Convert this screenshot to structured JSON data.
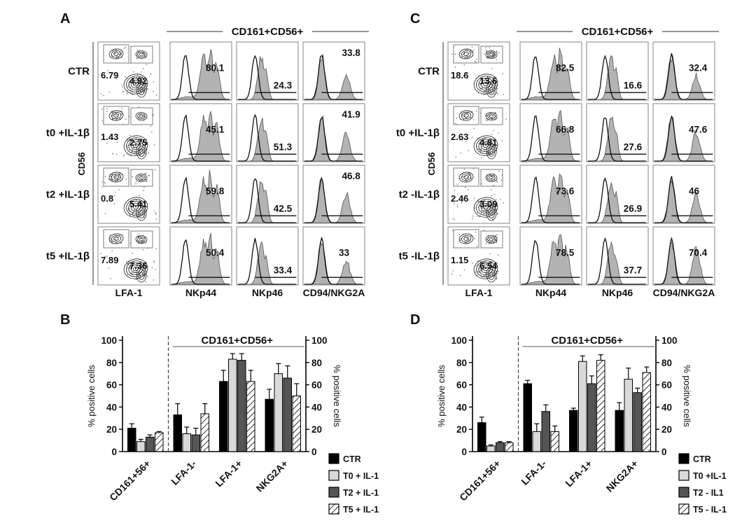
{
  "figure": {
    "background": "#ffffff"
  },
  "flow_panels": [
    {
      "panel_label": "A",
      "header": "CD161+CD56+",
      "y_axis_label": "CD56",
      "x_axis_labels": [
        "LFA-1",
        "NKp44",
        "NKp46",
        "CD94/NKG2A"
      ],
      "rows": [
        {
          "label": "CTR",
          "gates": [
            "6.79",
            "4.82"
          ],
          "hist": [
            {
              "value": "80.1",
              "pos": "mid"
            },
            {
              "value": "24.3",
              "pos": "low"
            },
            {
              "value": "33.8",
              "pos": "top"
            }
          ]
        },
        {
          "label": "t0 +IL-1β",
          "gates": [
            "1.43",
            "2.75"
          ],
          "hist": [
            {
              "value": "45.1",
              "pos": "mid"
            },
            {
              "value": "51.3",
              "pos": "low"
            },
            {
              "value": "41.9",
              "pos": "top"
            }
          ]
        },
        {
          "label": "t2 +IL-1β",
          "gates": [
            "0.8",
            "5.41"
          ],
          "hist": [
            {
              "value": "59.8",
              "pos": "mid"
            },
            {
              "value": "42.5",
              "pos": "low"
            },
            {
              "value": "46.8",
              "pos": "top"
            }
          ]
        },
        {
          "label": "t5 +IL-1β",
          "gates": [
            "7.89",
            "7.36"
          ],
          "hist": [
            {
              "value": "50.4",
              "pos": "mid"
            },
            {
              "value": "33.4",
              "pos": "low"
            },
            {
              "value": "33",
              "pos": "mid"
            }
          ]
        }
      ]
    },
    {
      "panel_label": "C",
      "header": "CD161+CD56+",
      "y_axis_label": "CD56",
      "x_axis_labels": [
        "LFA-1",
        "NKp44",
        "NKp46",
        "CD94/NKG2A"
      ],
      "rows": [
        {
          "label": "CTR",
          "gates": [
            "18.6",
            "13.6"
          ],
          "hist": [
            {
              "value": "82.5",
              "pos": "mid"
            },
            {
              "value": "16.6",
              "pos": "low"
            },
            {
              "value": "32.4",
              "pos": "mid"
            }
          ]
        },
        {
          "label": "t0 +IL-1β",
          "gates": [
            "2.63",
            "4.81"
          ],
          "hist": [
            {
              "value": "66.8",
              "pos": "mid"
            },
            {
              "value": "27.6",
              "pos": "low"
            },
            {
              "value": "47.6",
              "pos": "mid"
            }
          ]
        },
        {
          "label": "t2 -IL-1β",
          "gates": [
            "2.46",
            "3.09"
          ],
          "hist": [
            {
              "value": "73.6",
              "pos": "mid"
            },
            {
              "value": "26.9",
              "pos": "low"
            },
            {
              "value": "46",
              "pos": "mid"
            }
          ]
        },
        {
          "label": "t5 -IL-1β",
          "gates": [
            "1.15",
            "6.54"
          ],
          "hist": [
            {
              "value": "78.5",
              "pos": "mid"
            },
            {
              "value": "37.7",
              "pos": "low"
            },
            {
              "value": "70.4",
              "pos": "mid"
            }
          ]
        }
      ]
    }
  ],
  "chart_data": [
    {
      "id": "B",
      "panel_label": "B",
      "type": "bar",
      "title": "CD161+CD56+",
      "ylabel_left": "% positive cells",
      "ylabel_right": "% positive cells",
      "ylim": [
        0,
        100
      ],
      "yticks": [
        0,
        20,
        40,
        60,
        80,
        100
      ],
      "grid": false,
      "legend_position": "right-bottom",
      "categories": [
        "CD161+56+",
        "LFA-1-",
        "LFA-1+",
        "NKG2A+"
      ],
      "series": [
        {
          "name": "CTR",
          "color": "#000000",
          "pattern": "solid",
          "values": [
            21,
            33,
            63,
            47
          ],
          "errors": [
            4,
            10,
            10,
            9
          ]
        },
        {
          "name": "T0 + IL-1",
          "color": "#d9d9d9",
          "pattern": "solid",
          "values": [
            9,
            16,
            83,
            70
          ],
          "errors": [
            2,
            6,
            5,
            9
          ]
        },
        {
          "name": "T2 + IL-1",
          "color": "#555555",
          "pattern": "solid",
          "values": [
            13,
            15,
            82,
            66
          ],
          "errors": [
            2,
            6,
            6,
            11
          ]
        },
        {
          "name": "T5 + IL-1",
          "color": "#ffffff",
          "pattern": "hatch",
          "values": [
            17,
            34,
            63,
            50
          ],
          "errors": [
            1,
            9,
            10,
            11
          ]
        }
      ]
    },
    {
      "id": "D",
      "panel_label": "D",
      "type": "bar",
      "title": "CD161+CD56+",
      "ylabel_left": "% positive cells",
      "ylabel_right": "% positive cells",
      "ylim": [
        0,
        100
      ],
      "yticks": [
        0,
        20,
        40,
        60,
        80,
        100
      ],
      "grid": false,
      "legend_position": "right-bottom",
      "categories": [
        "CD161+56+",
        "LFA-1-",
        "LFA-1+",
        "NKG2A+"
      ],
      "series": [
        {
          "name": "CTR",
          "color": "#000000",
          "pattern": "solid",
          "values": [
            26,
            61,
            37,
            37
          ],
          "errors": [
            5,
            3,
            2,
            7
          ]
        },
        {
          "name": "T0 +IL-1",
          "color": "#d9d9d9",
          "pattern": "solid",
          "values": [
            5,
            18,
            81,
            65
          ],
          "errors": [
            1,
            7,
            5,
            10
          ]
        },
        {
          "name": "T2 - IL1",
          "color": "#555555",
          "pattern": "solid",
          "values": [
            8,
            36,
            61,
            53
          ],
          "errors": [
            1,
            6,
            7,
            4
          ]
        },
        {
          "name": "T5 - IL-1",
          "color": "#ffffff",
          "pattern": "hatch",
          "values": [
            8,
            18,
            82,
            71
          ],
          "errors": [
            1,
            5,
            5,
            5
          ]
        }
      ]
    }
  ]
}
